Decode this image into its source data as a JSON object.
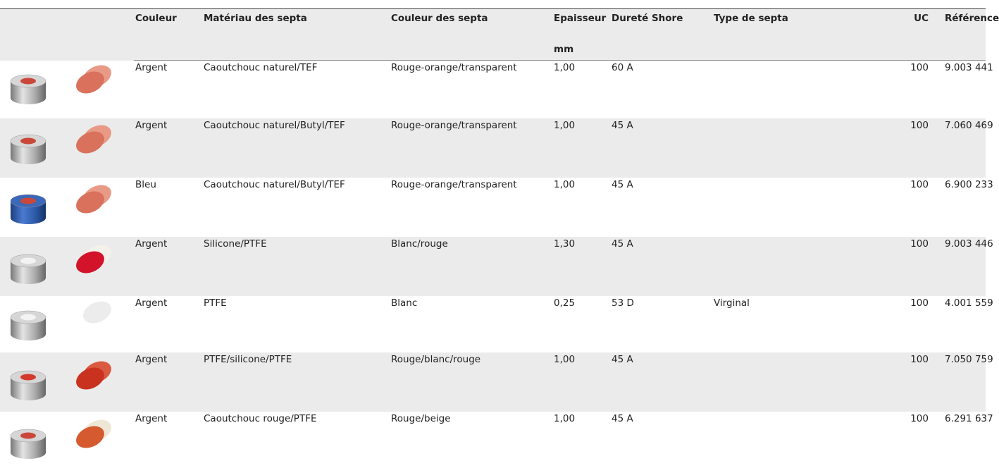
{
  "table": {
    "header": [
      "Couleur",
      "Matériau des septa",
      "Couleur des septa",
      "Epaisseur",
      "Dureté Shore",
      "Type de septa",
      "UC",
      "Référence"
    ],
    "thickness_unit": "mm",
    "rows": [
      {
        "color": "Argent",
        "material": "Caoutchouc naturel/TEF",
        "septa_color": "Rouge-orange/transparent",
        "thickness": "1,00",
        "hardness": "60 A",
        "uc": "100",
        "reference": "9.003 441"
      },
      {
        "color": "Argent",
        "material": "Caoutchouc naturel/Butyl/TEF",
        "septa_color": "Rouge-orange/transparent",
        "thickness": "1,00",
        "hardness": "45 A",
        "uc": "100",
        "reference": "7.060 469"
      },
      {
        "color": "Bleu",
        "material": "Caoutchouc naturel/Butyl/TEF",
        "septa_color": "Rouge-orange/transparent",
        "thickness": "1,00",
        "hardness": "45 A",
        "uc": "100",
        "reference": "6.900 233"
      },
      {
        "color": "Argent",
        "material": "Silicone/PTFE",
        "septa_color": "Blanc/rouge",
        "thickness": "1,30",
        "hardness": "45 A",
        "uc": "100",
        "reference": "9.003 446"
      },
      {
        "color": "Argent",
        "material": "PTFE",
        "septa_color": "Blanc",
        "thickness": "0,25",
        "hardness": "53 D",
        "type": "Virginal",
        "uc": "100",
        "reference": "4.001 559"
      },
      {
        "color": "Argent",
        "material": "PTFE/silicone/PTFE",
        "septa_color": "Rouge/blanc/rouge",
        "thickness": "1,00",
        "hardness": "45 A",
        "uc": "100",
        "reference": "7.050 759"
      },
      {
        "color": "Argent",
        "material": "Caoutchouc rouge/PTFE",
        "septa_color": "Rouge/beige",
        "thickness": "1,00",
        "hardness": "45 A",
        "uc": "100",
        "reference": "6.291 637"
      }
    ]
  }
}
